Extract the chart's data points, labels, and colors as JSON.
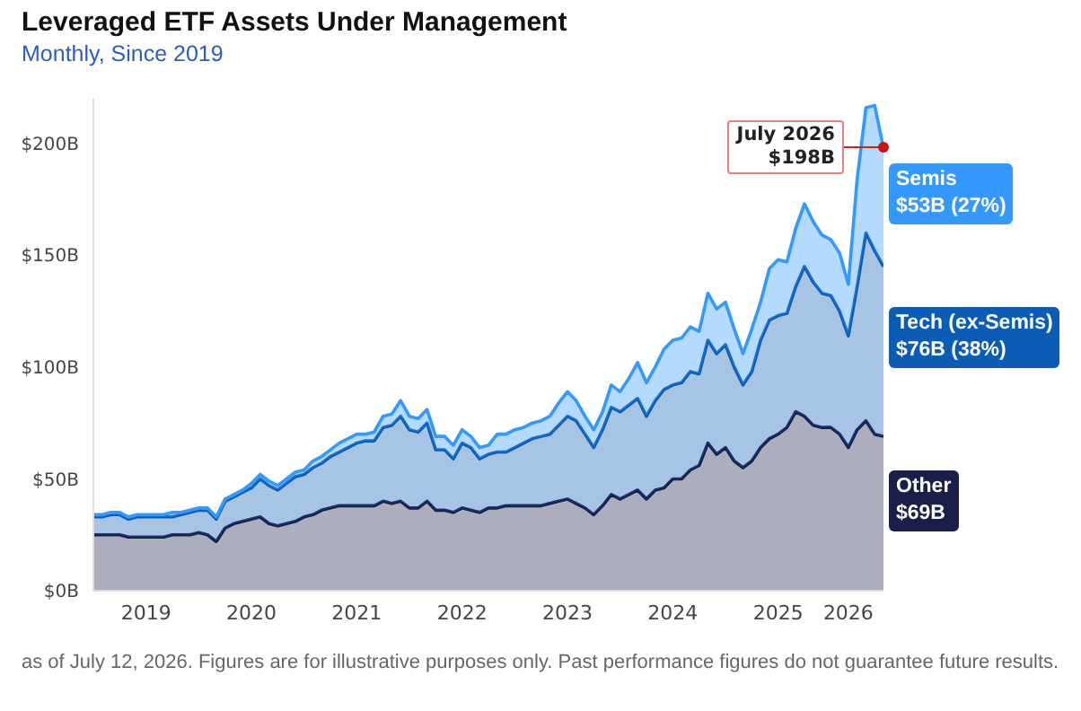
{
  "chart_data": {
    "type": "area",
    "stacked": true,
    "title": "Leveraged ETF Assets Under Management",
    "subtitle": "Monthly, Since 2019",
    "x": [
      "2019-01",
      "2019-02",
      "2019-03",
      "2019-04",
      "2019-05",
      "2019-06",
      "2019-07",
      "2019-08",
      "2019-09",
      "2019-10",
      "2019-11",
      "2019-12",
      "2020-01",
      "2020-02",
      "2020-03",
      "2020-04",
      "2020-05",
      "2020-06",
      "2020-07",
      "2020-08",
      "2020-09",
      "2020-10",
      "2020-11",
      "2020-12",
      "2021-01",
      "2021-02",
      "2021-03",
      "2021-04",
      "2021-05",
      "2021-06",
      "2021-07",
      "2021-08",
      "2021-09",
      "2021-10",
      "2021-11",
      "2021-12",
      "2022-01",
      "2022-02",
      "2022-03",
      "2022-04",
      "2022-05",
      "2022-06",
      "2022-07",
      "2022-08",
      "2022-09",
      "2022-10",
      "2022-11",
      "2022-12",
      "2023-01",
      "2023-02",
      "2023-03",
      "2023-04",
      "2023-05",
      "2023-06",
      "2023-07",
      "2023-08",
      "2023-09",
      "2023-10",
      "2023-11",
      "2023-12",
      "2024-01",
      "2024-02",
      "2024-03",
      "2024-04",
      "2024-05",
      "2024-06",
      "2024-07",
      "2024-08",
      "2024-09",
      "2024-10",
      "2024-11",
      "2024-12",
      "2025-01",
      "2025-02",
      "2025-03",
      "2025-04",
      "2025-05",
      "2025-06",
      "2025-07",
      "2025-08",
      "2025-09",
      "2025-10",
      "2025-11",
      "2025-12",
      "2026-01",
      "2026-02",
      "2026-03",
      "2026-04",
      "2026-05",
      "2026-06",
      "2026-07"
    ],
    "series": [
      {
        "name": "Other",
        "color": "#1a1f4a",
        "values": [
          25,
          25,
          25,
          25,
          24,
          24,
          24,
          24,
          24,
          25,
          25,
          25,
          26,
          25,
          22,
          28,
          30,
          31,
          32,
          33,
          30,
          29,
          30,
          31,
          33,
          34,
          36,
          37,
          38,
          38,
          38,
          38,
          38,
          40,
          39,
          40,
          37,
          37,
          40,
          36,
          36,
          35,
          37,
          36,
          35,
          37,
          37,
          38,
          38,
          38,
          38,
          38,
          39,
          40,
          41,
          39,
          37,
          34,
          38,
          43,
          41,
          43,
          45,
          41,
          45,
          46,
          50,
          50,
          54,
          56,
          66,
          61,
          64,
          58,
          55,
          58,
          64,
          68,
          70,
          73,
          80,
          78,
          74,
          73,
          73,
          70,
          64,
          72,
          76,
          70,
          69
        ]
      },
      {
        "name": "Tech (ex-Semis)",
        "color": "#0b5cb5",
        "values": [
          8,
          8,
          9,
          9,
          8,
          9,
          9,
          9,
          9,
          8,
          9,
          10,
          10,
          11,
          10,
          12,
          12,
          13,
          14,
          17,
          17,
          16,
          18,
          20,
          19,
          21,
          21,
          23,
          24,
          26,
          28,
          29,
          29,
          33,
          35,
          38,
          35,
          34,
          35,
          27,
          27,
          24,
          29,
          28,
          24,
          24,
          25,
          24,
          26,
          28,
          30,
          31,
          31,
          34,
          37,
          37,
          33,
          30,
          34,
          39,
          39,
          40,
          41,
          37,
          40,
          44,
          42,
          43,
          44,
          41,
          46,
          45,
          46,
          42,
          37,
          40,
          48,
          53,
          53,
          51,
          56,
          67,
          64,
          60,
          59,
          55,
          50,
          64,
          84,
          82,
          76
        ]
      },
      {
        "name": "Semis",
        "color": "#3399ff",
        "values": [
          1,
          1,
          1,
          1,
          1,
          1,
          1,
          1,
          1,
          2,
          1,
          1,
          1,
          1,
          1,
          1,
          1,
          1,
          2,
          2,
          2,
          2,
          2,
          2,
          2,
          3,
          3,
          3,
          4,
          4,
          4,
          3,
          4,
          5,
          5,
          7,
          6,
          6,
          6,
          6,
          6,
          6,
          6,
          5,
          5,
          4,
          8,
          8,
          8,
          7,
          7,
          7,
          8,
          10,
          11,
          9,
          8,
          8,
          8,
          10,
          9,
          12,
          16,
          15,
          15,
          18,
          20,
          20,
          20,
          19,
          21,
          20,
          19,
          17,
          14,
          19,
          17,
          23,
          25,
          23,
          26,
          28,
          27,
          26,
          25,
          26,
          23,
          48,
          56,
          65,
          53
        ]
      }
    ],
    "xlim": [
      "2019-01",
      "2026-07"
    ],
    "xticks": [
      {
        "value": "2019-07",
        "label": "2019"
      },
      {
        "value": "2020-07",
        "label": "2020"
      },
      {
        "value": "2021-07",
        "label": "2021"
      },
      {
        "value": "2022-07",
        "label": "2022"
      },
      {
        "value": "2023-07",
        "label": "2023"
      },
      {
        "value": "2024-07",
        "label": "2024"
      },
      {
        "value": "2025-07",
        "label": "2025"
      },
      {
        "value": "2026-03",
        "label": "2026"
      }
    ],
    "ylim": [
      0,
      220
    ],
    "yticks": [
      {
        "value": 0,
        "label": "$0B"
      },
      {
        "value": 50,
        "label": "$50B"
      },
      {
        "value": 100,
        "label": "$100B"
      },
      {
        "value": 150,
        "label": "$150B"
      },
      {
        "value": 200,
        "label": "$200B"
      }
    ],
    "annotations": [
      {
        "text": "July 2026\n$198B",
        "x": "2026-07",
        "y": 198
      },
      {
        "text": "$69B",
        "x": "2026-07",
        "y": 34.5
      },
      {
        "text": "$76B (38%)",
        "x": "2026-07",
        "y": 107
      },
      {
        "text": "$53B (27%)",
        "x": "2026-07",
        "y": 171.5
      },
      "as of July 12, 2026. Figures are for illustrative purposes only. Past performance figures do not guarantee future results."
    ]
  }
}
